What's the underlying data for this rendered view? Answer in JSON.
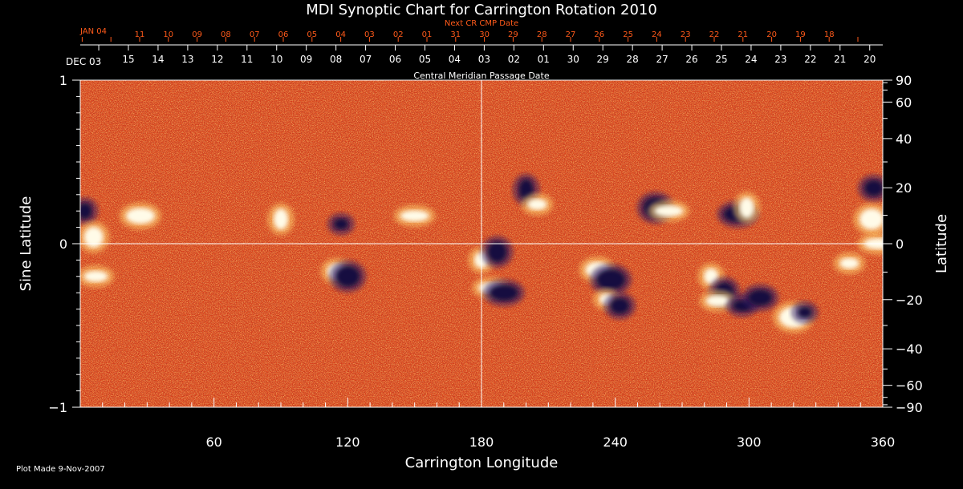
{
  "title": "MDI Synoptic Chart for Carrington Rotation 2010",
  "footer": "Plot Made  9-Nov-2007",
  "colors": {
    "background": "#000000",
    "foreground": "#ffffff",
    "next_cr": "#ff5a1a",
    "map_base": "#e0461a"
  },
  "chart_data": {
    "type": "heatmap",
    "xlabel": "Carrington Longitude",
    "ylabel": "Sine Latitude",
    "y2label": "Latitude",
    "xlim": [
      0,
      360
    ],
    "ylim": [
      -1,
      1
    ],
    "xticks": [
      60,
      120,
      180,
      240,
      300,
      360
    ],
    "yticks": [
      -1,
      0,
      1
    ],
    "y2ticks": [
      90,
      60,
      40,
      20,
      0,
      -20,
      -40,
      -60,
      -90
    ],
    "grid_lines": {
      "longitude": 180,
      "sine_latitude": 0
    },
    "cmp_axis": {
      "label": "Central Meridian Passage Date",
      "start_label": "DEC 03",
      "dates": [
        "15",
        "14",
        "13",
        "12",
        "11",
        "10",
        "09",
        "08",
        "07",
        "06",
        "05",
        "04",
        "03",
        "02",
        "01",
        "30",
        "29",
        "28",
        "27",
        "26",
        "25",
        "24",
        "23",
        "22",
        "21",
        "20"
      ]
    },
    "next_cr_axis": {
      "label": "Next CR CMP Date",
      "start_label": "JAN 04",
      "dates": [
        "11",
        "10",
        "09",
        "08",
        "07",
        "06",
        "05",
        "04",
        "03",
        "02",
        "01",
        "31",
        "30",
        "29",
        "28",
        "27",
        "26",
        "25",
        "24",
        "23",
        "22",
        "21",
        "20",
        "19",
        "18"
      ]
    },
    "regions": [
      {
        "lon": 117,
        "sinlat": 0.12,
        "polarity": "negative"
      },
      {
        "lon": 115,
        "sinlat": -0.17,
        "polarity": "positive"
      },
      {
        "lon": 120,
        "sinlat": -0.2,
        "polarity": "negative"
      },
      {
        "lon": 150,
        "sinlat": 0.17,
        "polarity": "positive"
      },
      {
        "lon": 180,
        "sinlat": -0.1,
        "polarity": "positive"
      },
      {
        "lon": 187,
        "sinlat": -0.05,
        "polarity": "negative"
      },
      {
        "lon": 184,
        "sinlat": -0.27,
        "polarity": "positive"
      },
      {
        "lon": 190,
        "sinlat": -0.3,
        "polarity": "negative"
      },
      {
        "lon": 200,
        "sinlat": 0.33,
        "polarity": "negative"
      },
      {
        "lon": 205,
        "sinlat": 0.24,
        "polarity": "positive"
      },
      {
        "lon": 232,
        "sinlat": -0.16,
        "polarity": "positive"
      },
      {
        "lon": 238,
        "sinlat": -0.22,
        "polarity": "negative"
      },
      {
        "lon": 236,
        "sinlat": -0.34,
        "polarity": "positive"
      },
      {
        "lon": 242,
        "sinlat": -0.38,
        "polarity": "negative"
      },
      {
        "lon": 258,
        "sinlat": 0.22,
        "polarity": "negative"
      },
      {
        "lon": 264,
        "sinlat": 0.2,
        "polarity": "positive"
      },
      {
        "lon": 283,
        "sinlat": -0.2,
        "polarity": "positive"
      },
      {
        "lon": 289,
        "sinlat": -0.3,
        "polarity": "negative"
      },
      {
        "lon": 286,
        "sinlat": -0.35,
        "polarity": "positive"
      },
      {
        "lon": 295,
        "sinlat": 0.18,
        "polarity": "negative"
      },
      {
        "lon": 299,
        "sinlat": 0.22,
        "polarity": "positive"
      },
      {
        "lon": 297,
        "sinlat": -0.38,
        "polarity": "negative"
      },
      {
        "lon": 305,
        "sinlat": -0.33,
        "polarity": "negative"
      },
      {
        "lon": 320,
        "sinlat": -0.45,
        "polarity": "positive"
      },
      {
        "lon": 325,
        "sinlat": -0.42,
        "polarity": "negative"
      },
      {
        "lon": 356,
        "sinlat": 0.34,
        "polarity": "negative"
      },
      {
        "lon": 355,
        "sinlat": 0.15,
        "polarity": "positive"
      },
      {
        "lon": 358,
        "sinlat": 0.0,
        "polarity": "positive"
      },
      {
        "lon": 2,
        "sinlat": 0.2,
        "polarity": "negative"
      },
      {
        "lon": 6,
        "sinlat": 0.04,
        "polarity": "positive"
      },
      {
        "lon": 7,
        "sinlat": -0.2,
        "polarity": "positive"
      },
      {
        "lon": 27,
        "sinlat": 0.17,
        "polarity": "positive"
      },
      {
        "lon": 90,
        "sinlat": 0.15,
        "polarity": "positive"
      },
      {
        "lon": 345,
        "sinlat": -0.12,
        "polarity": "positive"
      }
    ]
  }
}
